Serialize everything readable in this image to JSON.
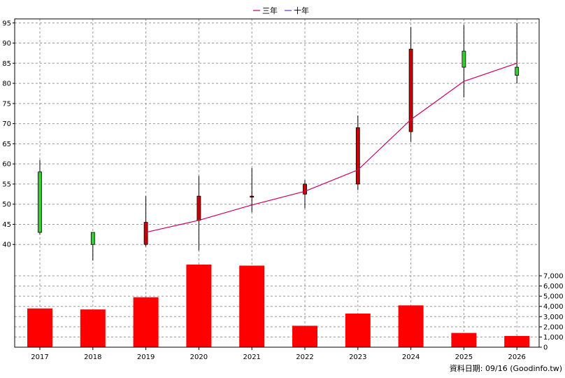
{
  "legend": [
    {
      "label": "三年",
      "color": "#cc0066"
    },
    {
      "label": "十年",
      "color": "#6633cc"
    }
  ],
  "footer": "資料日期: 09/16  (Goodinfo.tw)",
  "chart_data": [
    {
      "type": "candlestick",
      "categories": [
        "2017",
        "2018",
        "2019",
        "2020",
        "2021",
        "2022",
        "2023",
        "2024",
        "2025",
        "2026"
      ],
      "y_ticks": [
        40,
        45,
        50,
        55,
        60,
        65,
        70,
        75,
        80,
        85,
        90,
        95
      ],
      "ylim": [
        35,
        96
      ],
      "grid": true,
      "up_color": "#33cc33",
      "down_color": "#cc0000",
      "candles": [
        {
          "x": "2017",
          "open": 43,
          "close": 58,
          "high": 61,
          "low": 42.5
        },
        {
          "x": "2018",
          "open": 40,
          "close": 43,
          "high": 43,
          "low": 36
        },
        {
          "x": "2019",
          "open": 45.5,
          "close": 40,
          "high": 52,
          "low": 39.5
        },
        {
          "x": "2020",
          "open": 52,
          "close": 46,
          "high": 57,
          "low": 38.5
        },
        {
          "x": "2021",
          "open": 52,
          "close": 51.9,
          "high": 59,
          "low": 48
        },
        {
          "x": "2022",
          "open": 55,
          "close": 52.5,
          "high": 56,
          "low": 49
        },
        {
          "x": "2023",
          "open": 69,
          "close": 55,
          "high": 72,
          "low": 53.5
        },
        {
          "x": "2024",
          "open": 88.5,
          "close": 68,
          "high": 94,
          "low": 65.5
        },
        {
          "x": "2025",
          "open": 84,
          "close": 88,
          "high": 94.5,
          "low": 76.5
        },
        {
          "x": "2026",
          "open": 82,
          "close": 84,
          "high": 95,
          "low": 80
        }
      ],
      "series": [
        {
          "name": "三年",
          "color": "#cc0066",
          "points": [
            [
              "2019",
              43
            ],
            [
              "2020",
              46
            ],
            [
              "2021",
              49.8
            ],
            [
              "2022",
              53.2
            ],
            [
              "2023",
              58.5
            ],
            [
              "2024",
              71
            ],
            [
              "2025",
              80.5
            ],
            [
              "2026",
              85
            ]
          ]
        }
      ]
    },
    {
      "type": "bar",
      "categories": [
        "2017",
        "2018",
        "2019",
        "2020",
        "2021",
        "2022",
        "2023",
        "2024",
        "2025",
        "2026"
      ],
      "values": [
        3800,
        3700,
        4900,
        8100,
        8000,
        2100,
        3300,
        4100,
        1400,
        1100
      ],
      "y_ticks": [
        0,
        1000,
        2000,
        3000,
        4000,
        5000,
        6000,
        7000
      ],
      "y_tick_labels": [
        "0",
        "1,000",
        "2,000",
        "3,000",
        "4,000",
        "5,000",
        "6,000",
        "7,000"
      ],
      "ylim": [
        0,
        8100
      ],
      "bar_color": "#ff0000",
      "grid": true
    }
  ]
}
